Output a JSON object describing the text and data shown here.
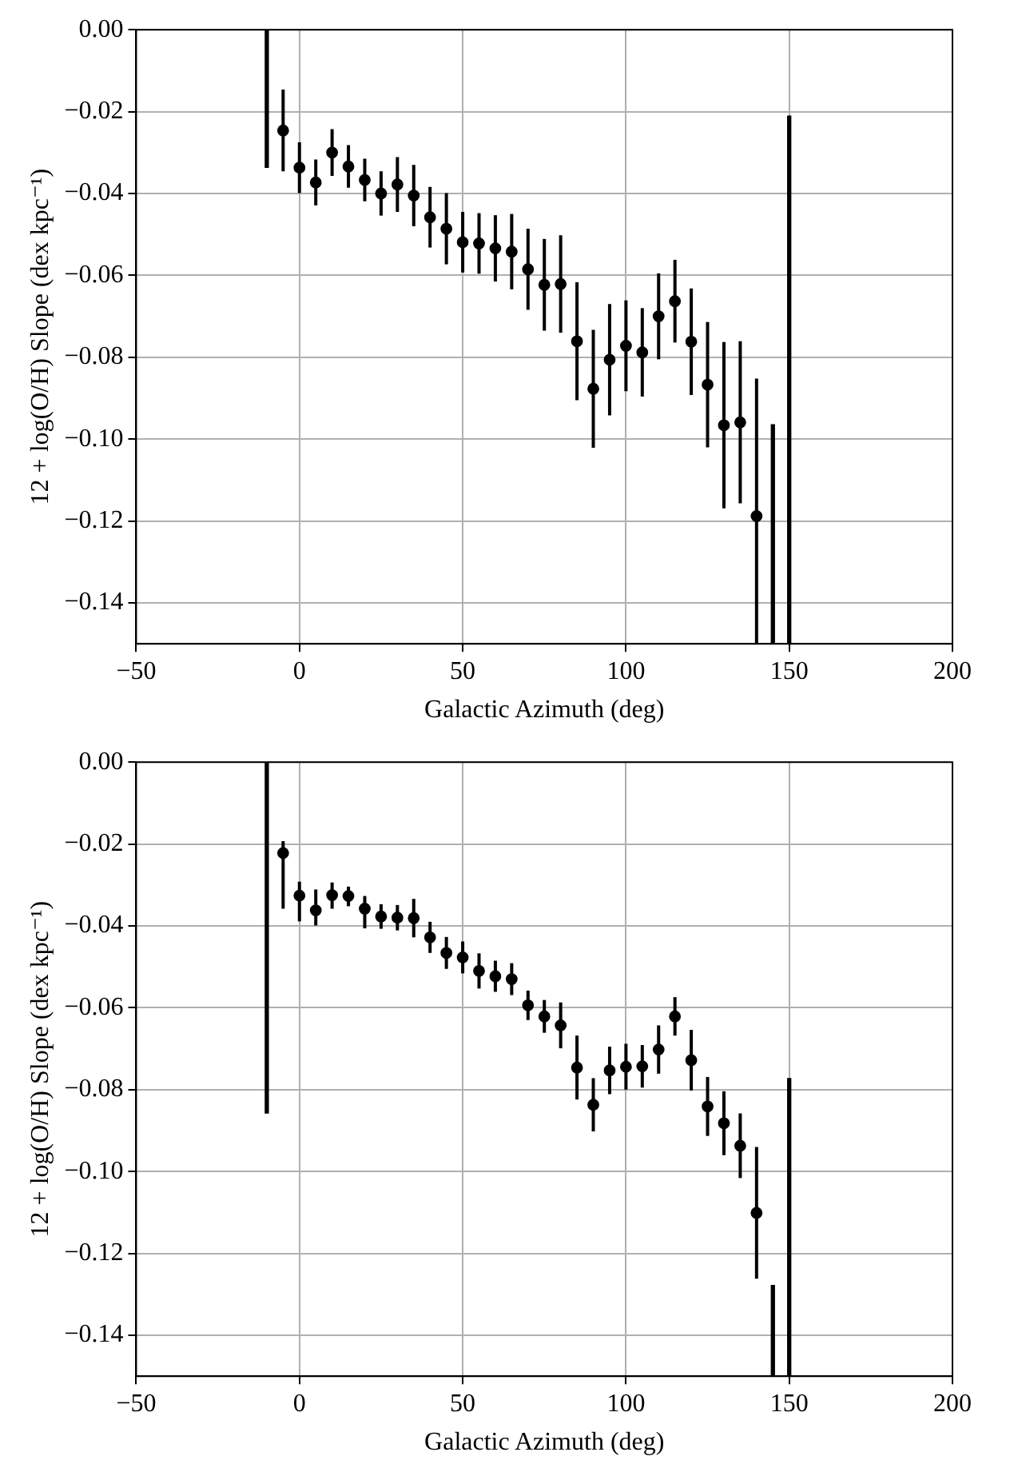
{
  "chart_data": [
    {
      "type": "scatter",
      "xlabel": "Galactic Azimuth (deg)",
      "ylabel": "12 + log(O/H) Slope (dex kpc⁻¹)",
      "xlim": [
        -50,
        200
      ],
      "xticks": [
        {
          "value": -50,
          "label": "−50"
        },
        0,
        50,
        100,
        150,
        200
      ],
      "ylim": [
        -0.15,
        0
      ],
      "yticks": [
        {
          "value": -0.14,
          "label": "−0.14"
        },
        {
          "value": -0.12,
          "label": "−0.12"
        },
        {
          "value": -0.1,
          "label": "−0.10"
        },
        {
          "value": -0.08,
          "label": "−0.08"
        },
        {
          "value": -0.06,
          "label": "−0.06"
        },
        {
          "value": -0.04,
          "label": "−0.04"
        },
        {
          "value": -0.02,
          "label": "−0.02"
        },
        {
          "value": 0,
          "label": "0.00"
        }
      ],
      "grid": true,
      "marker": "circle",
      "series": [
        {
          "color": "#000000",
          "x": [
            -5,
            0,
            5,
            10,
            15,
            20,
            25,
            30,
            35,
            40,
            45,
            50,
            55,
            60,
            65,
            70,
            75,
            80,
            85,
            90,
            95,
            100,
            105,
            110,
            115,
            120,
            125,
            130,
            135,
            140
          ],
          "values": [
            -0.0246,
            -0.0337,
            -0.0373,
            -0.03,
            -0.0334,
            -0.0367,
            -0.04,
            -0.0378,
            -0.0405,
            -0.0458,
            -0.0486,
            -0.0519,
            -0.0522,
            -0.0534,
            -0.0542,
            -0.0585,
            -0.0623,
            -0.0621,
            -0.0761,
            -0.0877,
            -0.0806,
            -0.0772,
            -0.0788,
            -0.07,
            -0.0663,
            -0.0762,
            -0.0867,
            -0.0966,
            -0.0959,
            -0.1188
          ],
          "errors": [
            0.01,
            0.0062,
            0.0056,
            0.0057,
            0.0052,
            0.0052,
            0.0054,
            0.0067,
            0.0075,
            0.0074,
            0.0087,
            0.0074,
            0.0074,
            0.0081,
            0.0092,
            0.0099,
            0.0112,
            0.0119,
            0.0144,
            0.0144,
            0.0136,
            0.0111,
            0.0108,
            0.0105,
            0.0101,
            0.013,
            0.0153,
            0.0203,
            0.0198,
            [
              -0.15,
              -0.0852
            ]
          ]
        },
        {
          "type": "bar",
          "color": "#000000",
          "x": [
            -10,
            145,
            150
          ],
          "base": [
            -0.0336,
            -0.15,
            -0.15
          ],
          "values": [
            0.0336,
            0.0535,
            0.1289
          ]
        }
      ]
    },
    {
      "type": "scatter",
      "xlabel": "Galactic Azimuth (deg)",
      "ylabel": "12 + log(O/H) Slope (dex kpc⁻¹)",
      "xlim": [
        -50,
        200
      ],
      "xticks": [
        {
          "value": -50,
          "label": "−50"
        },
        0,
        50,
        100,
        150,
        200
      ],
      "ylim": [
        -0.15,
        0
      ],
      "yticks": [
        {
          "value": -0.14,
          "label": "−0.14"
        },
        {
          "value": -0.12,
          "label": "−0.12"
        },
        {
          "value": -0.1,
          "label": "−0.10"
        },
        {
          "value": -0.08,
          "label": "−0.08"
        },
        {
          "value": -0.06,
          "label": "−0.06"
        },
        {
          "value": -0.04,
          "label": "−0.04"
        },
        {
          "value": -0.02,
          "label": "−0.02"
        },
        {
          "value": 0,
          "label": "0.00"
        }
      ],
      "grid": true,
      "marker": "circle",
      "series": [
        {
          "color": "#000000",
          "x": [
            -5,
            0,
            5,
            10,
            15,
            20,
            25,
            30,
            35,
            40,
            45,
            50,
            55,
            60,
            65,
            70,
            75,
            80,
            85,
            90,
            95,
            100,
            105,
            110,
            115,
            120,
            125,
            130,
            135,
            140
          ],
          "values": [
            -0.0222,
            -0.0326,
            -0.0362,
            -0.0325,
            -0.0327,
            -0.0358,
            -0.0377,
            -0.038,
            -0.0381,
            -0.0428,
            -0.0466,
            -0.0477,
            -0.051,
            -0.0523,
            -0.053,
            -0.0594,
            -0.0621,
            -0.0643,
            -0.0746,
            -0.0837,
            -0.0753,
            -0.0744,
            -0.0743,
            -0.0702,
            -0.0621,
            -0.0728,
            -0.0841,
            -0.0882,
            -0.0937,
            -0.1101
          ],
          "errors": [
            [
              -0.0358,
              -0.0193
            ],
            [
              -0.0389,
              -0.0292
            ],
            [
              -0.0399,
              -0.0311
            ],
            [
              -0.0358,
              -0.0294
            ],
            [
              -0.0352,
              -0.0304
            ],
            [
              -0.0406,
              -0.0327
            ],
            0.003,
            0.0031,
            0.0047,
            0.0038,
            0.0039,
            0.0039,
            0.0043,
            0.0038,
            0.0039,
            0.0036,
            0.004,
            0.0056,
            0.0078,
            0.0065,
            0.0058,
            0.0056,
            0.0052,
            0.0059,
            0.0047,
            0.0074,
            0.0072,
            0.0078,
            0.0079,
            0.0161
          ]
        },
        {
          "type": "bar",
          "color": "#000000",
          "x": [
            -10,
            145,
            150
          ],
          "base": [
            -0.0857,
            -0.15,
            -0.15
          ],
          "values": [
            0.0857,
            0.0222,
            0.0727
          ]
        }
      ]
    }
  ]
}
